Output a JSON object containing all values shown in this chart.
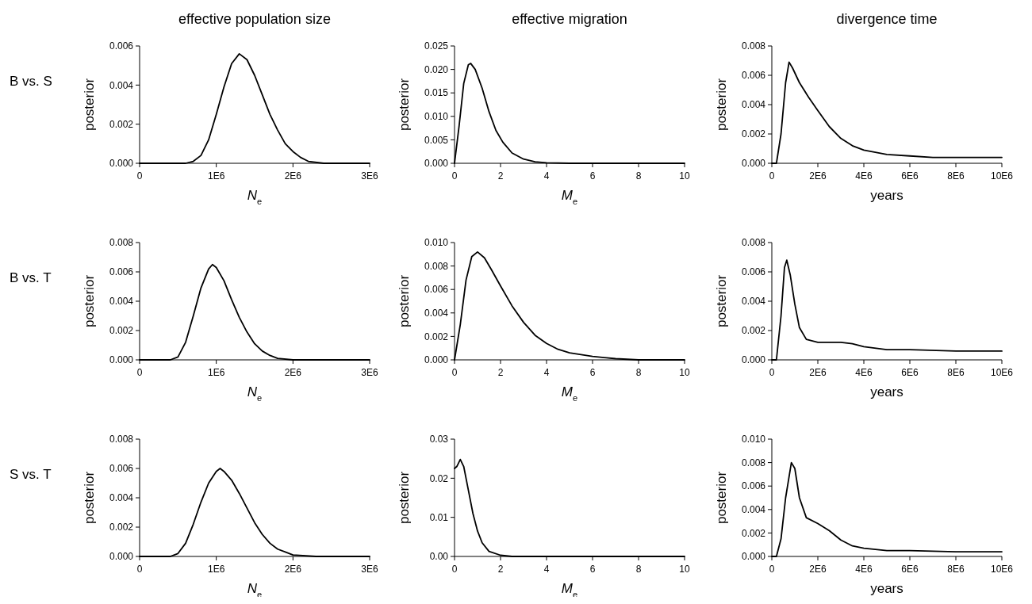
{
  "chart_data": [
    {
      "type": "line",
      "title": "effective population size",
      "ylabel": "posterior",
      "xlabel": "N$_{e}$",
      "annotations": [
        "B vs. S"
      ],
      "line_style": "solid",
      "marker": "none",
      "grid": false,
      "xlim": [
        0,
        3000000
      ],
      "xticks": [
        0,
        {
          "value": 1000000,
          "label": "1E6"
        },
        {
          "value": 2000000,
          "label": "2E6"
        },
        {
          "value": 3000000,
          "label": "3E6"
        }
      ],
      "ylim": [
        0,
        0.006
      ],
      "yticks": [
        {
          "value": 0,
          "label": "0.000"
        },
        {
          "value": 0.002,
          "label": "0.002"
        },
        {
          "value": 0.004,
          "label": "0.004"
        },
        {
          "value": 0.006,
          "label": "0.006"
        }
      ],
      "series": [
        {
          "color": "#000000",
          "x": [
            0,
            600000,
            700000,
            800000,
            900000,
            1000000,
            1100000,
            1200000,
            1300000,
            1400000,
            1500000,
            1600000,
            1700000,
            1800000,
            1900000,
            2000000,
            2100000,
            2200000,
            2400000,
            2600000,
            3000000
          ],
          "values": [
            0,
            0,
            0.0001,
            0.0004,
            0.0012,
            0.0025,
            0.0039,
            0.0051,
            0.0056,
            0.0053,
            0.0045,
            0.0035,
            0.0025,
            0.0017,
            0.001,
            0.0006,
            0.0003,
            0.0001,
            0,
            0,
            0
          ]
        }
      ]
    },
    {
      "type": "line",
      "title": "effective migration",
      "ylabel": "posterior",
      "xlabel": "M$_{e}$",
      "line_style": "solid",
      "marker": "none",
      "grid": false,
      "xlim": [
        0,
        10
      ],
      "xticks": [
        0,
        2,
        4,
        6,
        8,
        10
      ],
      "ylim": [
        0,
        0.025
      ],
      "yticks": [
        {
          "value": 0,
          "label": "0.000"
        },
        {
          "value": 0.005,
          "label": "0.005"
        },
        {
          "value": 0.01,
          "label": "0.010"
        },
        {
          "value": 0.015,
          "label": "0.015"
        },
        {
          "value": 0.02,
          "label": "0.020"
        },
        {
          "value": 0.025,
          "label": "0.025"
        }
      ],
      "series": [
        {
          "color": "#000000",
          "x": [
            0,
            0.2,
            0.4,
            0.6,
            0.7,
            0.9,
            1.2,
            1.5,
            1.8,
            2.1,
            2.5,
            3,
            3.5,
            4,
            5,
            10
          ],
          "values": [
            0,
            0.008,
            0.017,
            0.021,
            0.0213,
            0.02,
            0.016,
            0.011,
            0.007,
            0.0045,
            0.0022,
            0.0009,
            0.0003,
            0.0001,
            0,
            0
          ]
        }
      ]
    },
    {
      "type": "line",
      "title": "divergence time",
      "ylabel": "posterior",
      "xlabel": "years",
      "line_style": "solid",
      "marker": "none",
      "grid": false,
      "xlim": [
        0,
        10000000
      ],
      "xticks": [
        0,
        {
          "value": 2000000,
          "label": "2E6"
        },
        {
          "value": 4000000,
          "label": "4E6"
        },
        {
          "value": 6000000,
          "label": "6E6"
        },
        {
          "value": 8000000,
          "label": "8E6"
        },
        {
          "value": 10000000,
          "label": "10E6"
        }
      ],
      "ylim": [
        0,
        0.008
      ],
      "yticks": [
        {
          "value": 0,
          "label": "0.000"
        },
        {
          "value": 0.002,
          "label": "0.002"
        },
        {
          "value": 0.004,
          "label": "0.004"
        },
        {
          "value": 0.006,
          "label": "0.006"
        },
        {
          "value": 0.008,
          "label": "0.008"
        }
      ],
      "series": [
        {
          "color": "#000000",
          "x": [
            0,
            200000,
            400000,
            600000,
            750000,
            900000,
            1200000,
            1600000,
            2000000,
            2500000,
            3000000,
            3500000,
            4000000,
            5000000,
            6000000,
            7000000,
            8000000,
            10000000
          ],
          "values": [
            0,
            0,
            0.002,
            0.0055,
            0.0069,
            0.0065,
            0.0055,
            0.0045,
            0.0036,
            0.0025,
            0.0017,
            0.0012,
            0.0009,
            0.0006,
            0.0005,
            0.0004,
            0.0004,
            0.0004
          ]
        }
      ]
    },
    {
      "type": "line",
      "ylabel": "posterior",
      "xlabel": "N$_{e}$",
      "annotations": [
        "B vs. T"
      ],
      "line_style": "solid",
      "marker": "none",
      "grid": false,
      "xlim": [
        0,
        3000000
      ],
      "xticks": [
        0,
        {
          "value": 1000000,
          "label": "1E6"
        },
        {
          "value": 2000000,
          "label": "2E6"
        },
        {
          "value": 3000000,
          "label": "3E6"
        }
      ],
      "ylim": [
        0,
        0.008
      ],
      "yticks": [
        {
          "value": 0,
          "label": "0.000"
        },
        {
          "value": 0.002,
          "label": "0.002"
        },
        {
          "value": 0.004,
          "label": "0.004"
        },
        {
          "value": 0.006,
          "label": "0.006"
        },
        {
          "value": 0.008,
          "label": "0.008"
        }
      ],
      "series": [
        {
          "color": "#000000",
          "x": [
            0,
            400000,
            500000,
            600000,
            700000,
            800000,
            900000,
            950000,
            1000000,
            1100000,
            1200000,
            1300000,
            1400000,
            1500000,
            1600000,
            1700000,
            1800000,
            2000000,
            3000000
          ],
          "values": [
            0,
            0,
            0.0002,
            0.0012,
            0.003,
            0.0049,
            0.0062,
            0.0065,
            0.0063,
            0.0054,
            0.0041,
            0.0029,
            0.0019,
            0.0011,
            0.0006,
            0.0003,
            0.0001,
            0,
            0
          ]
        }
      ]
    },
    {
      "type": "line",
      "ylabel": "posterior",
      "xlabel": "M$_{e}$",
      "line_style": "solid",
      "marker": "none",
      "grid": false,
      "xlim": [
        0,
        10
      ],
      "xticks": [
        0,
        2,
        4,
        6,
        8,
        10
      ],
      "ylim": [
        0,
        0.01
      ],
      "yticks": [
        {
          "value": 0,
          "label": "0.000"
        },
        {
          "value": 0.002,
          "label": "0.002"
        },
        {
          "value": 0.004,
          "label": "0.004"
        },
        {
          "value": 0.006,
          "label": "0.006"
        },
        {
          "value": 0.008,
          "label": "0.008"
        },
        {
          "value": 0.01,
          "label": "0.010"
        }
      ],
      "series": [
        {
          "color": "#000000",
          "x": [
            0,
            0.25,
            0.5,
            0.75,
            1,
            1.3,
            1.6,
            2,
            2.5,
            3,
            3.5,
            4,
            4.5,
            5,
            6,
            7,
            8,
            10
          ],
          "values": [
            0,
            0.003,
            0.0068,
            0.0088,
            0.0092,
            0.0087,
            0.0077,
            0.0063,
            0.0046,
            0.0032,
            0.0021,
            0.0014,
            0.0009,
            0.0006,
            0.0003,
            0.0001,
            0,
            0
          ]
        }
      ]
    },
    {
      "type": "line",
      "ylabel": "posterior",
      "xlabel": "years",
      "line_style": "solid",
      "marker": "none",
      "grid": false,
      "xlim": [
        0,
        10000000
      ],
      "xticks": [
        0,
        {
          "value": 2000000,
          "label": "2E6"
        },
        {
          "value": 4000000,
          "label": "4E6"
        },
        {
          "value": 6000000,
          "label": "6E6"
        },
        {
          "value": 8000000,
          "label": "8E6"
        },
        {
          "value": 10000000,
          "label": "10E6"
        }
      ],
      "ylim": [
        0,
        0.008
      ],
      "yticks": [
        {
          "value": 0,
          "label": "0.000"
        },
        {
          "value": 0.002,
          "label": "0.002"
        },
        {
          "value": 0.004,
          "label": "0.004"
        },
        {
          "value": 0.006,
          "label": "0.006"
        },
        {
          "value": 0.008,
          "label": "0.008"
        }
      ],
      "series": [
        {
          "color": "#000000",
          "x": [
            0,
            200000,
            400000,
            550000,
            650000,
            800000,
            1000000,
            1200000,
            1500000,
            2000000,
            2500000,
            3000000,
            3500000,
            4000000,
            5000000,
            6000000,
            8000000,
            10000000
          ],
          "values": [
            0,
            0,
            0.003,
            0.0063,
            0.0068,
            0.0058,
            0.0038,
            0.0022,
            0.0014,
            0.0012,
            0.0012,
            0.0012,
            0.0011,
            0.0009,
            0.0007,
            0.0007,
            0.0006,
            0.0006
          ]
        }
      ]
    },
    {
      "type": "line",
      "ylabel": "posterior",
      "xlabel": "N$_{e}$",
      "annotations": [
        "S vs. T"
      ],
      "line_style": "solid",
      "marker": "none",
      "grid": false,
      "xlim": [
        0,
        3000000
      ],
      "xticks": [
        0,
        {
          "value": 1000000,
          "label": "1E6"
        },
        {
          "value": 2000000,
          "label": "2E6"
        },
        {
          "value": 3000000,
          "label": "3E6"
        }
      ],
      "ylim": [
        0,
        0.008
      ],
      "yticks": [
        {
          "value": 0,
          "label": "0.000"
        },
        {
          "value": 0.002,
          "label": "0.002"
        },
        {
          "value": 0.004,
          "label": "0.004"
        },
        {
          "value": 0.006,
          "label": "0.006"
        },
        {
          "value": 0.008,
          "label": "0.008"
        }
      ],
      "series": [
        {
          "color": "#000000",
          "x": [
            0,
            400000,
            500000,
            600000,
            700000,
            800000,
            900000,
            1000000,
            1050000,
            1100000,
            1200000,
            1300000,
            1400000,
            1500000,
            1600000,
            1700000,
            1800000,
            1900000,
            2000000,
            2300000,
            3000000
          ],
          "values": [
            0,
            0,
            0.0002,
            0.0009,
            0.0022,
            0.0037,
            0.005,
            0.0058,
            0.006,
            0.0058,
            0.0052,
            0.0043,
            0.0033,
            0.0023,
            0.0015,
            0.0009,
            0.0005,
            0.0003,
            0.0001,
            0,
            0
          ]
        }
      ]
    },
    {
      "type": "line",
      "ylabel": "posterior",
      "xlabel": "M$_{e}$",
      "line_style": "solid",
      "marker": "none",
      "grid": false,
      "xlim": [
        0,
        10
      ],
      "xticks": [
        0,
        2,
        4,
        6,
        8,
        10
      ],
      "ylim": [
        0,
        0.03
      ],
      "yticks": [
        {
          "value": 0,
          "label": "0.00"
        },
        {
          "value": 0.01,
          "label": "0.01"
        },
        {
          "value": 0.02,
          "label": "0.02"
        },
        {
          "value": 0.03,
          "label": "0.03"
        }
      ],
      "series": [
        {
          "color": "#000000",
          "x": [
            0,
            0.1,
            0.25,
            0.4,
            0.6,
            0.8,
            1,
            1.2,
            1.5,
            2,
            2.5,
            3,
            10
          ],
          "values": [
            0.0225,
            0.023,
            0.0248,
            0.023,
            0.017,
            0.011,
            0.0065,
            0.0035,
            0.0013,
            0.0003,
            0,
            0,
            0
          ]
        }
      ]
    },
    {
      "type": "line",
      "ylabel": "posterior",
      "xlabel": "years",
      "line_style": "solid",
      "marker": "none",
      "grid": false,
      "xlim": [
        0,
        10000000
      ],
      "xticks": [
        0,
        {
          "value": 2000000,
          "label": "2E6"
        },
        {
          "value": 4000000,
          "label": "4E6"
        },
        {
          "value": 6000000,
          "label": "6E6"
        },
        {
          "value": 8000000,
          "label": "8E6"
        },
        {
          "value": 10000000,
          "label": "10E6"
        }
      ],
      "ylim": [
        0,
        0.01
      ],
      "yticks": [
        {
          "value": 0,
          "label": "0.000"
        },
        {
          "value": 0.002,
          "label": "0.002"
        },
        {
          "value": 0.004,
          "label": "0.004"
        },
        {
          "value": 0.006,
          "label": "0.006"
        },
        {
          "value": 0.008,
          "label": "0.008"
        },
        {
          "value": 0.01,
          "label": "0.010"
        }
      ],
      "series": [
        {
          "color": "#000000",
          "x": [
            0,
            200000,
            400000,
            600000,
            850000,
            1000000,
            1200000,
            1500000,
            2000000,
            2500000,
            3000000,
            3500000,
            4000000,
            5000000,
            6000000,
            8000000,
            10000000
          ],
          "values": [
            0,
            0,
            0.0015,
            0.005,
            0.008,
            0.0075,
            0.005,
            0.0033,
            0.0028,
            0.0022,
            0.0014,
            0.0009,
            0.0007,
            0.0005,
            0.0005,
            0.0004,
            0.0004
          ]
        }
      ]
    }
  ]
}
